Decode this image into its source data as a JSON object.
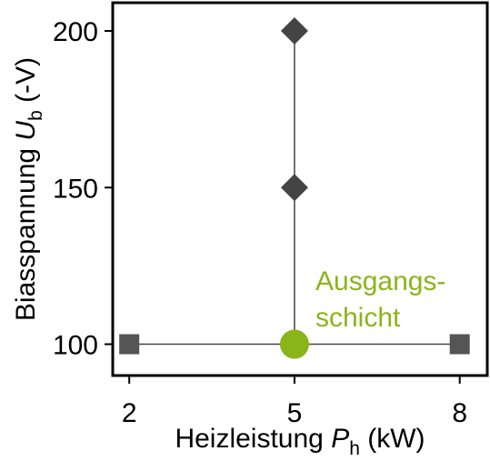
{
  "chart_data": {
    "type": "scatter",
    "xlabel": {
      "main": "Heizleistung ",
      "var": "P",
      "sub": "h",
      "unit": " (kW)"
    },
    "ylabel": {
      "main": "Biasspannung ",
      "var": "U",
      "sub": "b",
      "unit": " (-V)"
    },
    "xticks": [
      2,
      5,
      8
    ],
    "yticks": [
      100,
      150,
      200
    ],
    "xlim": [
      1.7,
      8.5
    ],
    "ylim": [
      90,
      209
    ],
    "grid": false,
    "series": [
      {
        "marker": "square",
        "color": "#555555",
        "points": [
          [
            2,
            100
          ],
          [
            8,
            100
          ]
        ]
      },
      {
        "marker": "diamond",
        "color": "#444444",
        "points": [
          [
            5,
            150
          ],
          [
            5,
            200
          ]
        ]
      },
      {
        "marker": "circle",
        "color": "#8ab51a",
        "points": [
          [
            5,
            100
          ]
        ]
      }
    ],
    "lines": [
      {
        "from": [
          2,
          100
        ],
        "to": [
          8,
          100
        ]
      },
      {
        "from": [
          5,
          100
        ],
        "to": [
          5,
          200
        ]
      }
    ],
    "annotation": {
      "lines": [
        "Ausgangs-",
        "schicht"
      ],
      "color": "#8ab51a",
      "anchor": [
        5,
        100
      ]
    }
  }
}
